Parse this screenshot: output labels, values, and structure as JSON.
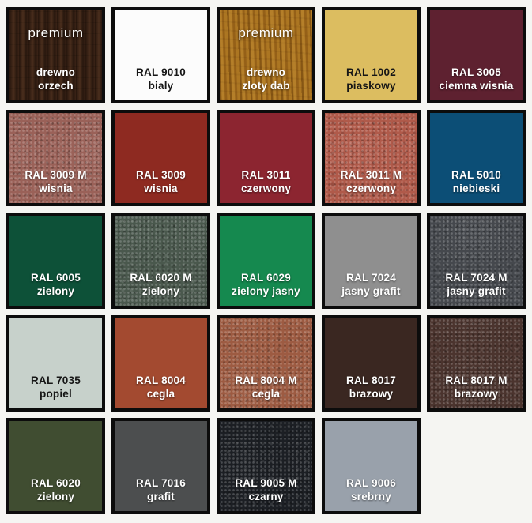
{
  "page": {
    "background": "#f5f5f2",
    "border_color": "#0c0c0c"
  },
  "chart_data": {
    "type": "table",
    "columns": [
      "code",
      "name_pl",
      "hex",
      "finish"
    ],
    "rows": [
      [
        "premium drewno",
        "orzech",
        "#3d2517",
        "wood"
      ],
      [
        "RAL 9010",
        "bialy",
        "#fcfcfc",
        "smooth"
      ],
      [
        "premium drewno",
        "zloty dab",
        "#a8711d",
        "wood"
      ],
      [
        "RAL 1002",
        "piaskowy",
        "#dcbd60",
        "smooth"
      ],
      [
        "RAL 3005",
        "ciemna wisnia",
        "#5e2130",
        "smooth"
      ],
      [
        "RAL 3009 M",
        "wisnia",
        "#9a6158",
        "matte"
      ],
      [
        "RAL 3009",
        "wisnia",
        "#8e2a21",
        "smooth"
      ],
      [
        "RAL 3011",
        "czerwony",
        "#8c2530",
        "smooth"
      ],
      [
        "RAL 3011 M",
        "czerwony",
        "#b05a4a",
        "matte"
      ],
      [
        "RAL 5010",
        "niebieski",
        "#0c4e76",
        "smooth"
      ],
      [
        "RAL 6005",
        "zielony",
        "#0d5138",
        "smooth"
      ],
      [
        "RAL 6020 M",
        "zielony",
        "#4a584d",
        "matte"
      ],
      [
        "RAL 6029",
        "zielony jasny",
        "#15894f",
        "smooth"
      ],
      [
        "RAL 7024",
        "jasny grafit",
        "#8f8f8f",
        "smooth"
      ],
      [
        "RAL 7024 M",
        "jasny grafit",
        "#45484d",
        "matte"
      ],
      [
        "RAL 7035",
        "popiel",
        "#c7d1cb",
        "smooth"
      ],
      [
        "RAL 8004",
        "cegla",
        "#a34a30",
        "smooth"
      ],
      [
        "RAL 8004 M",
        "cegla",
        "#9d5b42",
        "matte"
      ],
      [
        "RAL 8017",
        "brazowy",
        "#3a2721",
        "smooth"
      ],
      [
        "RAL 8017 M",
        "brazowy",
        "#4b342e",
        "matte"
      ],
      [
        "RAL 6020",
        "zielony",
        "#404d31",
        "smooth"
      ],
      [
        "RAL 7016",
        "grafit",
        "#4c4e4f",
        "smooth"
      ],
      [
        "RAL 9005 M",
        "czarny",
        "#1c1f24",
        "matte"
      ],
      [
        "RAL 9006",
        "srebrny",
        "#99a1ab",
        "smooth"
      ]
    ]
  },
  "swatches": [
    {
      "premium": "premium",
      "line1": "drewno",
      "line2": "orzech",
      "color": "#3d2517",
      "text": "light",
      "finish": "wood-walnut"
    },
    {
      "line1": "RAL 9010",
      "line2": "bialy",
      "color": "#fcfcfc",
      "text": "dark",
      "finish": "smooth"
    },
    {
      "premium": "premium",
      "line1": "drewno",
      "line2": "zloty dab",
      "color": "#a8711d",
      "text": "light",
      "finish": "wood-oak"
    },
    {
      "line1": "RAL 1002",
      "line2": "piaskowy",
      "color": "#dcbd60",
      "text": "dark",
      "finish": "smooth"
    },
    {
      "line1": "RAL 3005",
      "line2": "ciemna wisnia",
      "color": "#5e2130",
      "text": "light",
      "finish": "smooth"
    },
    {
      "line1": "RAL 3009 M",
      "line2": "wisnia",
      "color": "#9a6158",
      "text": "light",
      "finish": "matte"
    },
    {
      "line1": "RAL 3009",
      "line2": "wisnia",
      "color": "#8e2a21",
      "text": "light",
      "finish": "smooth"
    },
    {
      "line1": "RAL 3011",
      "line2": "czerwony",
      "color": "#8c2530",
      "text": "light",
      "finish": "smooth"
    },
    {
      "line1": "RAL 3011 M",
      "line2": "czerwony",
      "color": "#b05a4a",
      "text": "light",
      "finish": "matte"
    },
    {
      "line1": "RAL 5010",
      "line2": "niebieski",
      "color": "#0c4e76",
      "text": "light",
      "finish": "smooth"
    },
    {
      "line1": "RAL 6005",
      "line2": "zielony",
      "color": "#0d5138",
      "text": "light",
      "finish": "smooth"
    },
    {
      "line1": "RAL 6020 M",
      "line2": "zielony",
      "color": "#4a584d",
      "text": "light",
      "finish": "matte"
    },
    {
      "line1": "RAL 6029",
      "line2": "zielony jasny",
      "color": "#15894f",
      "text": "light",
      "finish": "smooth"
    },
    {
      "line1": "RAL 7024",
      "line2": "jasny grafit",
      "color": "#8f8f8f",
      "text": "light",
      "finish": "smooth"
    },
    {
      "line1": "RAL 7024 M",
      "line2": "jasny grafit",
      "color": "#45484d",
      "text": "light",
      "finish": "matte"
    },
    {
      "line1": "RAL 7035",
      "line2": "popiel",
      "color": "#c7d1cb",
      "text": "dark",
      "finish": "smooth"
    },
    {
      "line1": "RAL 8004",
      "line2": "cegla",
      "color": "#a34a30",
      "text": "light",
      "finish": "smooth"
    },
    {
      "line1": "RAL 8004 M",
      "line2": "cegla",
      "color": "#9d5b42",
      "text": "light",
      "finish": "matte"
    },
    {
      "line1": "RAL 8017",
      "line2": "brazowy",
      "color": "#3a2721",
      "text": "light",
      "finish": "smooth"
    },
    {
      "line1": "RAL 8017 M",
      "line2": "brazowy",
      "color": "#4b342e",
      "text": "light",
      "finish": "matte"
    },
    {
      "line1": "RAL 6020",
      "line2": "zielony",
      "color": "#404d31",
      "text": "light",
      "finish": "smooth"
    },
    {
      "line1": "RAL 7016",
      "line2": "grafit",
      "color": "#4c4e4f",
      "text": "light",
      "finish": "smooth"
    },
    {
      "line1": "RAL 9005 M",
      "line2": "czarny",
      "color": "#1c1f24",
      "text": "light",
      "finish": "matte"
    },
    {
      "line1": "RAL 9006",
      "line2": "srebrny",
      "color": "#99a1ab",
      "text": "light",
      "finish": "smooth"
    }
  ]
}
